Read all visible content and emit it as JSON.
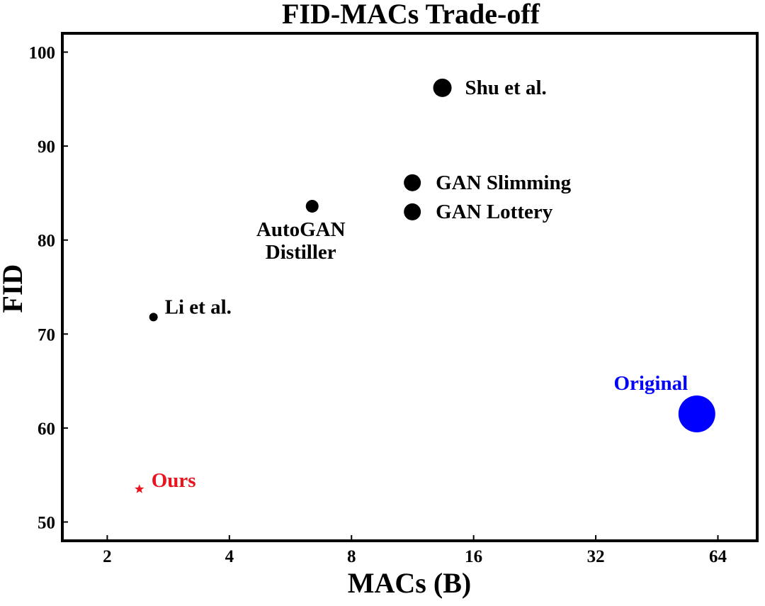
{
  "chart_data": {
    "type": "scatter",
    "title": "FID-MACs Trade-off",
    "xlabel": "MACs (B)",
    "ylabel": "FID",
    "x_scale": "log2",
    "xlim": [
      1.55,
      80
    ],
    "ylim": [
      48,
      102
    ],
    "x_ticks": [
      2,
      4,
      8,
      16,
      32,
      64
    ],
    "x_tick_labels": [
      "2",
      "4",
      "8",
      "16",
      "32",
      "64"
    ],
    "y_ticks": [
      50,
      60,
      70,
      80,
      90,
      100
    ],
    "y_tick_labels": [
      "50",
      "60",
      "70",
      "80",
      "90",
      "100"
    ],
    "grid": false,
    "points": [
      {
        "label": "Shu et al.",
        "x": 13.4,
        "y": 96.2,
        "color": "#000000",
        "marker": "circle"
      },
      {
        "label": "GAN Slimming",
        "x": 11.3,
        "y": 86.1,
        "color": "#000000",
        "marker": "circle"
      },
      {
        "label": "GAN Lottery",
        "x": 11.3,
        "y": 83.0,
        "color": "#000000",
        "marker": "circle"
      },
      {
        "label": "AutoGAN Distiller",
        "label_lines": [
          "AutoGAN",
          "Distiller"
        ],
        "x": 6.4,
        "y": 83.6,
        "color": "#000000",
        "marker": "circle"
      },
      {
        "label": "Li et al.",
        "x": 2.6,
        "y": 71.8,
        "color": "#000000",
        "marker": "circle"
      },
      {
        "label": "Original",
        "x": 56.8,
        "y": 61.5,
        "color": "#0000ff",
        "marker": "circle"
      },
      {
        "label": "Ours",
        "x": 2.4,
        "y": 53.5,
        "color": "#e8141e",
        "marker": "star"
      }
    ]
  }
}
